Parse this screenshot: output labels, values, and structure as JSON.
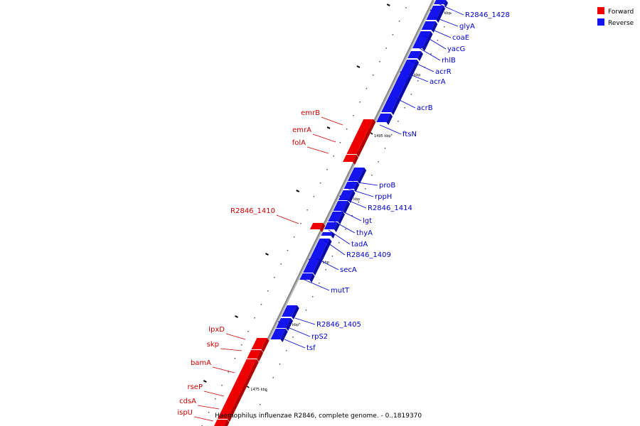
{
  "caption": "Haemophilus influenzae R2846, complete genome. - 0..1819370",
  "colors": {
    "forward": "#ee0000",
    "forward_shade": "#b00000",
    "reverse": "#1414ee",
    "reverse_shade": "#0a0aa8",
    "backbone": "#888888",
    "forward_label": "#cc0000",
    "reverse_label": "#0000cc"
  },
  "legend": {
    "forward_label": "Forward",
    "reverse_label": "Reverse"
  },
  "axis": {
    "ticks_kbp": [
      1475,
      1480,
      1485,
      1490,
      1495,
      1500,
      1505
    ],
    "unit": "kbp"
  },
  "forward_genes": [
    {
      "name": "emrB"
    },
    {
      "name": "emrA"
    },
    {
      "name": "folA"
    },
    {
      "name": "R2846_1410"
    },
    {
      "name": "lpxD"
    },
    {
      "name": "skp"
    },
    {
      "name": "bamA"
    },
    {
      "name": "rseP"
    },
    {
      "name": "cdsA"
    },
    {
      "name": "ispU"
    }
  ],
  "reverse_genes": [
    {
      "name": "R2846_1428"
    },
    {
      "name": "glyA"
    },
    {
      "name": "coaE"
    },
    {
      "name": "yacG"
    },
    {
      "name": "rhlB"
    },
    {
      "name": "acrR"
    },
    {
      "name": "acrA"
    },
    {
      "name": "acrB"
    },
    {
      "name": "ftsN"
    },
    {
      "name": "proB"
    },
    {
      "name": "rppH"
    },
    {
      "name": "R2846_1414"
    },
    {
      "name": "lgt"
    },
    {
      "name": "thyA"
    },
    {
      "name": "tadA"
    },
    {
      "name": "R2846_1409"
    },
    {
      "name": "secA"
    },
    {
      "name": "mutT"
    },
    {
      "name": "R2846_1405"
    },
    {
      "name": "rpS2"
    },
    {
      "name": "tsf"
    }
  ]
}
